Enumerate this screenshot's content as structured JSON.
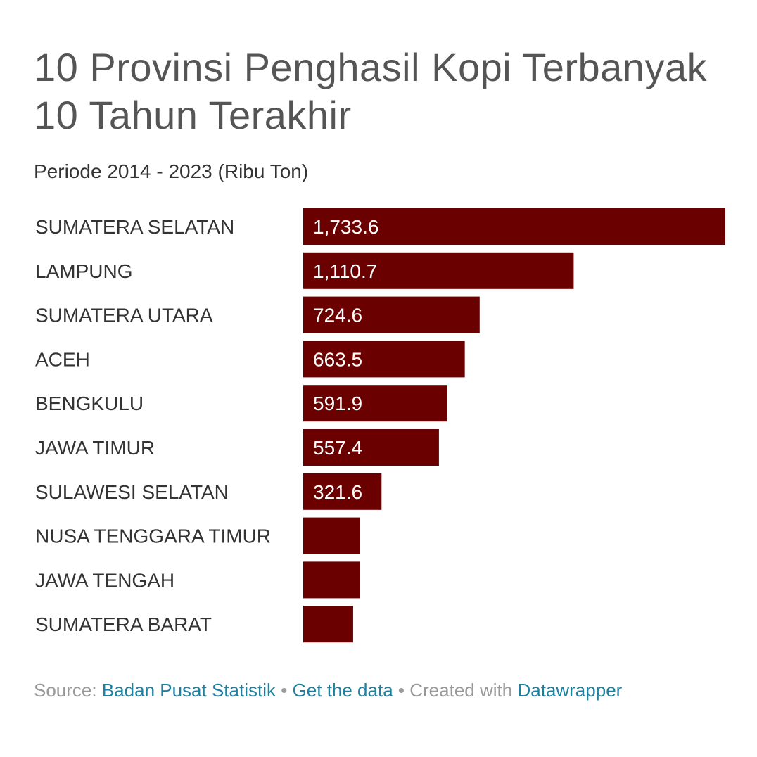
{
  "title_line1": "10 Provinsi Penghasil Kopi Terbanyak",
  "title_line2": "10 Tahun Terakhir",
  "subtitle": "Periode 2014 - 2023 (Ribu Ton)",
  "colors": {
    "bar": "#6b0000",
    "link": "#1d81a2",
    "muted": "#999999"
  },
  "footer": {
    "source_prefix": "Source:",
    "source_link": "Badan Pusat Statistik",
    "separator": "•",
    "get_data": "Get the data",
    "created_prefix": "Created with",
    "created_link": "Datawrapper"
  },
  "chart_data": {
    "type": "bar",
    "orientation": "horizontal",
    "categories": [
      "SUMATERA SELATAN",
      "LAMPUNG",
      "SUMATERA UTARA",
      "ACEH",
      "BENGKULU",
      "JAWA TIMUR",
      "SULAWESI SELATAN",
      "NUSA TENGGARA TIMUR",
      "JAWA TENGAH",
      "SUMATERA BARAT"
    ],
    "values": [
      1733.6,
      1110.7,
      724.6,
      663.5,
      591.9,
      557.4,
      321.6,
      234,
      234,
      205
    ],
    "value_labels": [
      "1,733.6",
      "1,110.7",
      "724.6",
      "663.5",
      "591.9",
      "557.4",
      "321.6",
      "",
      "",
      ""
    ],
    "xlim": [
      0,
      1733.6
    ],
    "title": "10 Provinsi Penghasil Kopi Terbanyak 10 Tahun Terakhir",
    "subtitle": "Periode 2014 - 2023 (Ribu Ton)"
  }
}
